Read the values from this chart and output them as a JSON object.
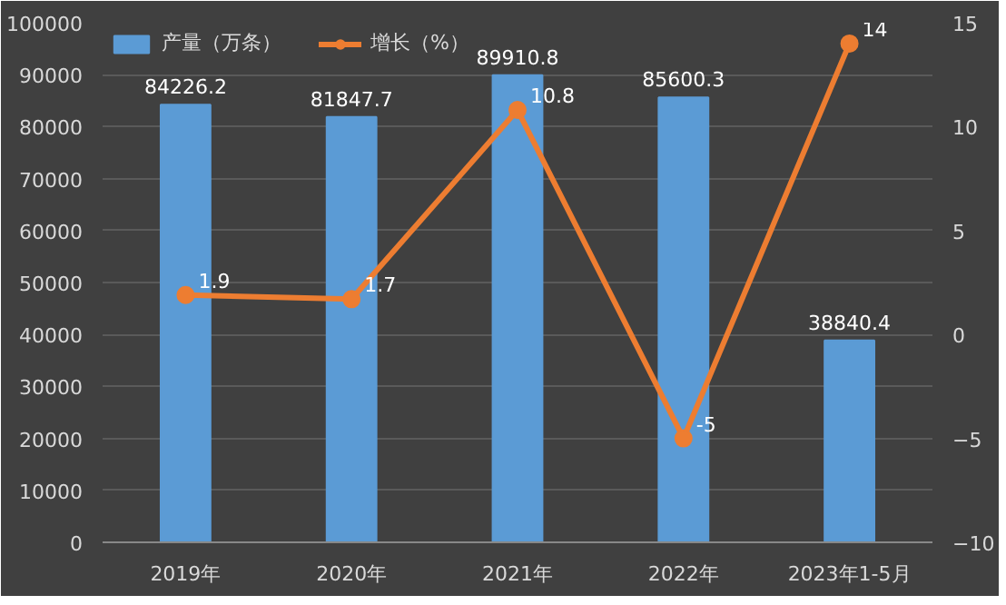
{
  "chart_data": {
    "type": "bar",
    "categories": [
      "2019年",
      "2020年",
      "2021年",
      "2022年",
      "2023年1-5月"
    ],
    "series": [
      {
        "name": "产量（万条）",
        "color": "#5b9bd5",
        "values": [
          84226.2,
          81847.7,
          89910.8,
          85600.3,
          38840.4
        ]
      },
      {
        "name": "增长（%）",
        "color": "#ed7d31",
        "type": "line",
        "axis": "y2",
        "marker": "circle",
        "values": [
          1.9,
          1.7,
          10.8,
          -5,
          14
        ]
      }
    ],
    "ylim": [
      0,
      100000
    ],
    "yticks": [
      0,
      10000,
      20000,
      30000,
      40000,
      50000,
      60000,
      70000,
      80000,
      90000,
      100000
    ],
    "y2lim": [
      -10,
      15
    ],
    "y2ticks": [
      -10,
      -5,
      0,
      5,
      10,
      15
    ],
    "grid": "y",
    "legend": "top",
    "data_labels": true
  }
}
